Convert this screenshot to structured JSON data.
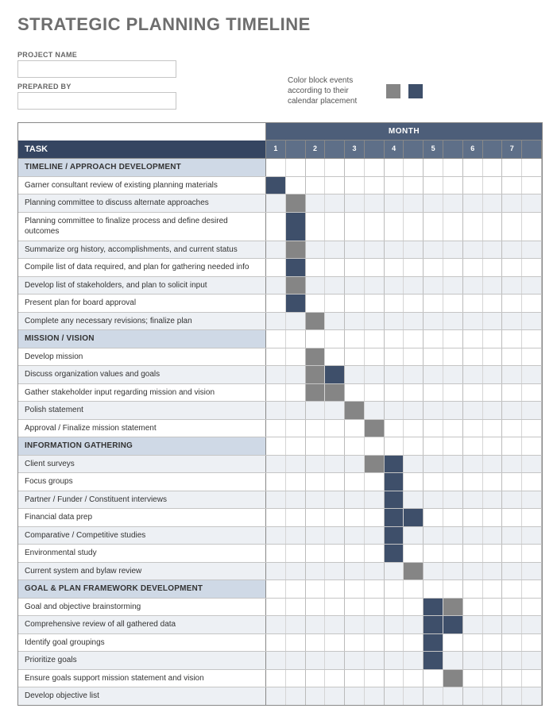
{
  "title": "STRATEGIC PLANNING TIMELINE",
  "form": {
    "project_label": "PROJECT NAME",
    "prepared_label": "PREPARED BY",
    "project_value": "",
    "prepared_value": ""
  },
  "legend": {
    "text": "Color block events according to their calendar placement",
    "swatch_color_1": "#858585",
    "swatch_color_2": "#3e4f6a"
  },
  "gantt": {
    "month_header": "MONTH",
    "task_header": "TASK",
    "months": [
      "1",
      "",
      "2",
      "",
      "3",
      "",
      "4",
      "",
      "5",
      "",
      "6",
      "",
      "7",
      ""
    ],
    "colors": {
      "header_bg": "#4d5e79",
      "task_hdr_bg": "#354561",
      "num_bg": "#5e6f88",
      "section_bg": "#cfd9e6",
      "alt_bg": "#edf0f4",
      "fill1": "#858585",
      "fill2": "#3e4f6a",
      "border": "#888"
    },
    "cols": 14,
    "sections": [
      {
        "name": "TIMELINE / APPROACH DEVELOPMENT",
        "rows": [
          {
            "label": "Garner consultant review of existing planning materials",
            "fills": {
              "0": 2
            }
          },
          {
            "label": "Planning committee to discuss alternate approaches",
            "fills": {
              "1": 1
            }
          },
          {
            "label": "Planning committee to finalize process and define desired outcomes",
            "fills": {
              "1": 2
            }
          },
          {
            "label": "Summarize org history, accomplishments, and current status",
            "fills": {
              "1": 1
            }
          },
          {
            "label": "Compile list of data required, and plan for gathering needed info",
            "fills": {
              "1": 2
            }
          },
          {
            "label": "Develop list of stakeholders, and plan to solicit input",
            "fills": {
              "1": 1
            }
          },
          {
            "label": "Present plan for board approval",
            "fills": {
              "1": 2
            }
          },
          {
            "label": "Complete any necessary revisions; finalize plan",
            "fills": {
              "2": 1
            }
          }
        ]
      },
      {
        "name": "MISSION / VISION",
        "rows": [
          {
            "label": "Develop mission",
            "fills": {
              "2": 1
            }
          },
          {
            "label": "Discuss organization values and goals",
            "fills": {
              "2": 1,
              "3": 2
            }
          },
          {
            "label": "Gather stakeholder input regarding mission and vision",
            "fills": {
              "2": 1,
              "3": 1
            }
          },
          {
            "label": "Polish statement",
            "fills": {
              "4": 1
            }
          },
          {
            "label": "Approval / Finalize mission statement",
            "fills": {
              "5": 1
            }
          }
        ]
      },
      {
        "name": "INFORMATION GATHERING",
        "rows": [
          {
            "label": "Client surveys",
            "fills": {
              "5": 1,
              "6": 2
            }
          },
          {
            "label": "Focus groups",
            "fills": {
              "6": 2
            }
          },
          {
            "label": "Partner / Funder / Constituent interviews",
            "fills": {
              "6": 2
            }
          },
          {
            "label": "Financial data prep",
            "fills": {
              "6": 2,
              "7": 2
            }
          },
          {
            "label": "Comparative / Competitive studies",
            "fills": {
              "6": 2
            }
          },
          {
            "label": "Environmental study",
            "fills": {
              "6": 2
            }
          },
          {
            "label": "Current system and bylaw review",
            "fills": {
              "7": 1
            }
          }
        ]
      },
      {
        "name": "GOAL & PLAN FRAMEWORK DEVELOPMENT",
        "rows": [
          {
            "label": "Goal and objective brainstorming",
            "fills": {
              "8": 2,
              "9": 1
            }
          },
          {
            "label": "Comprehensive review of all gathered data",
            "fills": {
              "8": 2,
              "9": 2
            }
          },
          {
            "label": "Identify goal groupings",
            "fills": {
              "8": 2
            }
          },
          {
            "label": "Prioritize goals",
            "fills": {
              "8": 2
            }
          },
          {
            "label": "Ensure goals support mission statement and vision",
            "fills": {
              "9": 1
            }
          },
          {
            "label": "Develop objective list",
            "fills": {}
          }
        ]
      }
    ]
  }
}
